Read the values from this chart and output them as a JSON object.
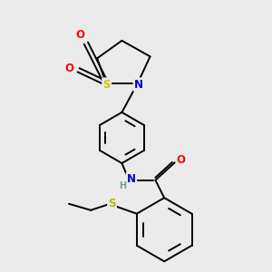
{
  "background_color": "#ebebeb",
  "bond_color": "#000000",
  "atom_colors": {
    "N": "#0000cd",
    "O": "#ff0000",
    "S_sulfonyl": "#cccc00",
    "S_thioether": "#bbbb00",
    "H": "#7f9f9f",
    "C": "#000000"
  },
  "figsize": [
    3.0,
    3.0
  ],
  "dpi": 100,
  "lw": 1.4,
  "font_size": 8.5
}
